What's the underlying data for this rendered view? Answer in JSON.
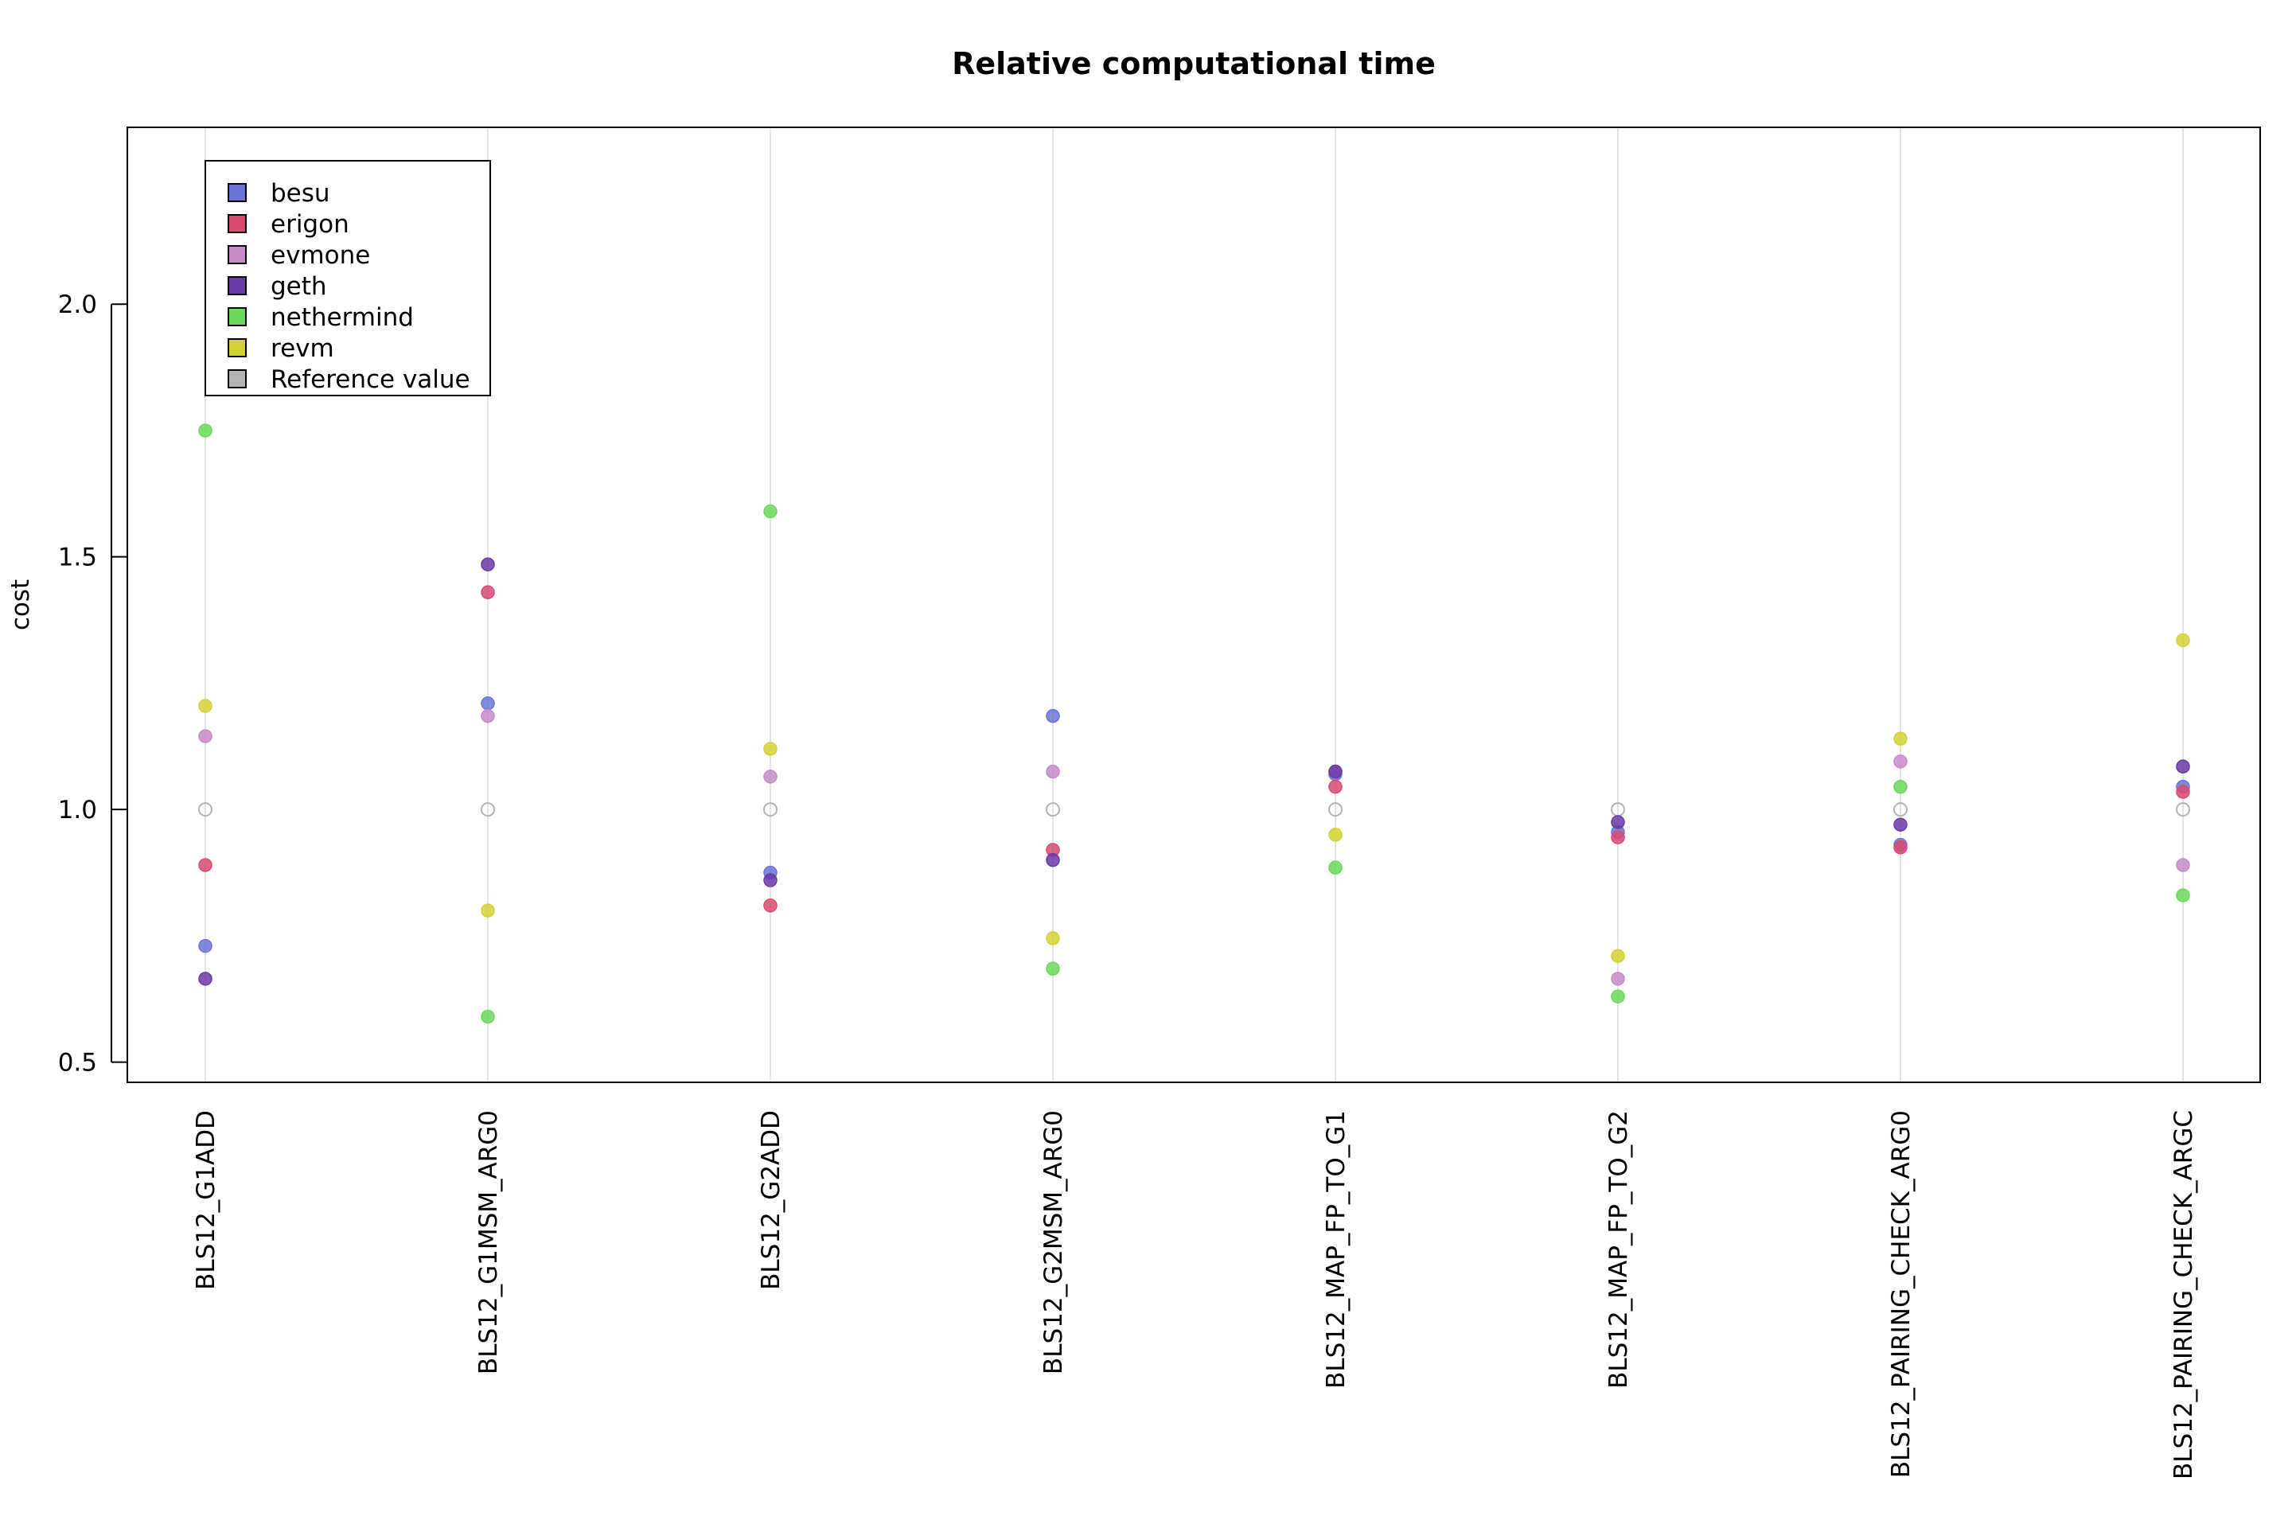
{
  "chart_data": {
    "type": "scatter",
    "title": "Relative computational time",
    "xlabel": "",
    "ylabel": "cost",
    "ylim": [
      0.46,
      2.35
    ],
    "yticks": [
      "0.5",
      "1.0",
      "1.5",
      "2.0"
    ],
    "grid": "vertical",
    "legend_position": "top-left",
    "categories": [
      "BLS12_G1ADD",
      "BLS12_G1MSM_ARG0",
      "BLS12_G2ADD",
      "BLS12_G2MSM_ARG0",
      "BLS12_MAP_FP_TO_G1",
      "BLS12_MAP_FP_TO_G2",
      "BLS12_PAIRING_CHECK_ARG0",
      "BLS12_PAIRING_CHECK_ARGC"
    ],
    "series": [
      {
        "name": "besu",
        "color": "#6b74d6",
        "values": [
          0.73,
          1.21,
          0.875,
          1.185,
          1.07,
          0.955,
          0.93,
          1.045
        ]
      },
      {
        "name": "erigon",
        "color": "#d94a6e",
        "values": [
          0.89,
          1.43,
          0.81,
          0.92,
          1.045,
          0.945,
          0.925,
          1.035
        ]
      },
      {
        "name": "evmone",
        "color": "#c68ac8",
        "values": [
          1.145,
          1.185,
          1.065,
          1.075,
          1.075,
          0.665,
          1.095,
          0.89
        ]
      },
      {
        "name": "geth",
        "color": "#6a3aa6",
        "values": [
          0.665,
          1.485,
          0.86,
          0.9,
          1.075,
          0.975,
          0.97,
          1.085
        ]
      },
      {
        "name": "nethermind",
        "color": "#6ad85a",
        "values": [
          1.75,
          0.59,
          1.59,
          0.685,
          0.885,
          0.63,
          1.045,
          0.83
        ]
      },
      {
        "name": "revm",
        "color": "#d2d236",
        "values": [
          1.205,
          0.8,
          1.12,
          0.745,
          0.95,
          0.71,
          1.14,
          1.335
        ]
      }
    ],
    "reference": {
      "name": "Reference value",
      "color": "#b3b3b3",
      "value": 1.0
    }
  }
}
